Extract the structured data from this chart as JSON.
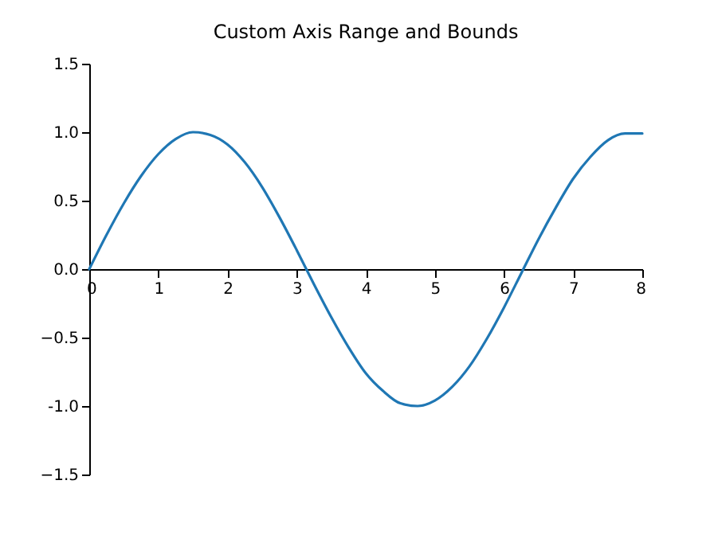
{
  "chart_data": {
    "type": "line",
    "title": "Custom Axis Range and Bounds",
    "x": [
      0,
      0.25,
      0.5,
      0.75,
      1,
      1.25,
      1.5,
      1.75,
      2,
      2.25,
      2.5,
      2.75,
      3,
      3.25,
      3.5,
      3.75,
      4,
      4.25,
      4.5,
      4.75,
      5,
      5.25,
      5.5,
      5.75,
      6,
      6.25,
      6.5,
      6.75,
      7,
      7.25,
      7.5,
      7.75,
      8
    ],
    "series": [
      {
        "color": "#1f77b4",
        "values": [
          0,
          0.25,
          0.48,
          0.68,
          0.84,
          0.95,
          1.0,
          0.98,
          0.91,
          0.78,
          0.6,
          0.38,
          0.14,
          -0.11,
          -0.35,
          -0.57,
          -0.76,
          -0.89,
          -0.98,
          -1.0,
          -0.96,
          -0.86,
          -0.71,
          -0.51,
          -0.28,
          -0.03,
          0.22,
          0.45,
          0.66,
          0.82,
          0.94,
          0.99,
          0.99
        ]
      }
    ],
    "xlim": [
      0,
      8
    ],
    "xticks": [
      0,
      1,
      2,
      3,
      4,
      5,
      6,
      7,
      8
    ],
    "ylim": [
      -1.5,
      1.5
    ],
    "yticks": [
      -1.5,
      {
        "value": -1,
        "label": "-1.0"
      },
      -0.5,
      {
        "value": 0,
        "label": "0.0"
      },
      0.5,
      {
        "value": 1,
        "label": "1.0"
      },
      1.5
    ],
    "grid": false,
    "legend": false,
    "marker": "none",
    "line_style": "solid"
  }
}
